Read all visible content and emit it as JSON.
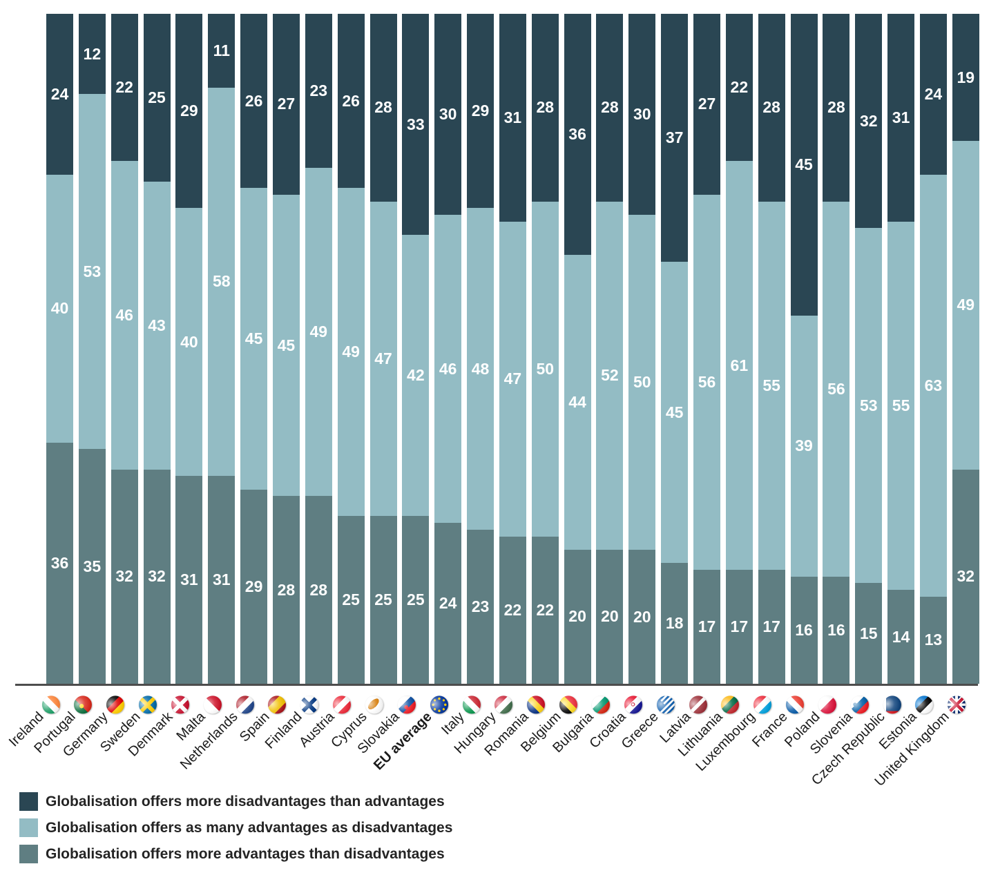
{
  "chart_data": {
    "type": "bar",
    "stacked": true,
    "unit": "percent",
    "title": "",
    "legend_position": "bottom-left",
    "background": "#ffffff",
    "axis_line_color": "#4d4d4d",
    "value_label_color": "#ffffff",
    "emphasis_category": "EU average",
    "categories": [
      "Ireland",
      "Portugal",
      "Germany",
      "Sweden",
      "Denmark",
      "Malta",
      "Netherlands",
      "Spain",
      "Finland",
      "Austria",
      "Cyprus",
      "Slovakia",
      "EU average",
      "Italy",
      "Hungary",
      "Romania",
      "Belgium",
      "Bulgaria",
      "Croatia",
      "Greece",
      "Latvia",
      "Lithuania",
      "Luxembourg",
      "France",
      "Poland",
      "Slovenia",
      "Czech Republic",
      "Estonia",
      "United Kingdom"
    ],
    "series": [
      {
        "name": "Globalisation offers more disadvantages than advantages",
        "color": "#2a4653",
        "values": [
          24,
          12,
          22,
          25,
          29,
          11,
          26,
          27,
          23,
          26,
          28,
          33,
          30,
          29,
          31,
          28,
          36,
          28,
          30,
          37,
          27,
          22,
          28,
          45,
          28,
          32,
          31,
          24,
          19
        ]
      },
      {
        "name": "Globalisation offers as many advantages as disadvantages",
        "color": "#93bcc4",
        "values": [
          40,
          53,
          46,
          43,
          40,
          58,
          45,
          45,
          49,
          49,
          47,
          42,
          46,
          48,
          47,
          50,
          44,
          52,
          50,
          45,
          56,
          61,
          55,
          39,
          56,
          53,
          55,
          63,
          49
        ]
      },
      {
        "name": "Globalisation offers more advantages than disadvantages",
        "color": "#5f7e82",
        "values": [
          36,
          35,
          32,
          32,
          31,
          31,
          29,
          28,
          28,
          25,
          25,
          25,
          24,
          23,
          22,
          22,
          20,
          20,
          20,
          18,
          17,
          17,
          17,
          16,
          16,
          15,
          14,
          13,
          32
        ]
      }
    ],
    "flags": [
      {
        "type": "v",
        "colors": [
          "#169b62",
          "#ffffff",
          "#ff883e"
        ]
      },
      {
        "type": "portugal",
        "colors": [
          "#046a38",
          "#da291c"
        ]
      },
      {
        "type": "h",
        "colors": [
          "#000000",
          "#dd0000",
          "#ffce00"
        ]
      },
      {
        "type": "cross",
        "colors": [
          "#006aa7",
          "#fecc02"
        ]
      },
      {
        "type": "cross",
        "colors": [
          "#c8102e",
          "#ffffff"
        ]
      },
      {
        "type": "v",
        "colors": [
          "#ffffff",
          "#cf142b"
        ],
        "widths": [
          50,
          50
        ]
      },
      {
        "type": "h",
        "colors": [
          "#ae1c28",
          "#ffffff",
          "#21468b"
        ]
      },
      {
        "type": "h",
        "colors": [
          "#aa151b",
          "#f1bf00",
          "#aa151b"
        ],
        "widths": [
          25,
          50,
          25
        ]
      },
      {
        "type": "cross",
        "colors": [
          "#ffffff",
          "#003580"
        ]
      },
      {
        "type": "h",
        "colors": [
          "#ed2939",
          "#ffffff",
          "#ed2939"
        ]
      },
      {
        "type": "cyprus",
        "colors": [
          "#ffffff",
          "#d57800"
        ]
      },
      {
        "type": "slovakia",
        "colors": [
          "#ffffff",
          "#0b4ea2",
          "#ee1c25"
        ]
      },
      {
        "type": "eu",
        "colors": [
          "#003399",
          "#ffcc00"
        ]
      },
      {
        "type": "v",
        "colors": [
          "#009246",
          "#ffffff",
          "#ce2b37"
        ]
      },
      {
        "type": "h",
        "colors": [
          "#cd2a3e",
          "#ffffff",
          "#436f4d"
        ]
      },
      {
        "type": "v",
        "colors": [
          "#002b7f",
          "#fcd116",
          "#ce1126"
        ]
      },
      {
        "type": "v",
        "colors": [
          "#000000",
          "#fdda24",
          "#ef3340"
        ]
      },
      {
        "type": "h",
        "colors": [
          "#ffffff",
          "#00966e",
          "#d62612"
        ]
      },
      {
        "type": "croatia",
        "colors": [
          "#e8112d",
          "#ffffff",
          "#171796"
        ]
      },
      {
        "type": "greece",
        "colors": [
          "#0d5eaf",
          "#ffffff"
        ]
      },
      {
        "type": "h",
        "colors": [
          "#9e3039",
          "#ffffff",
          "#9e3039"
        ],
        "widths": [
          40,
          20,
          40
        ]
      },
      {
        "type": "h",
        "colors": [
          "#fdb913",
          "#006a44",
          "#c1272d"
        ]
      },
      {
        "type": "h",
        "colors": [
          "#ed2939",
          "#ffffff",
          "#00a1de"
        ]
      },
      {
        "type": "v",
        "colors": [
          "#0055a4",
          "#ffffff",
          "#ef4135"
        ]
      },
      {
        "type": "h",
        "colors": [
          "#ffffff",
          "#dc143c"
        ],
        "widths": [
          45,
          55
        ]
      },
      {
        "type": "slovenia",
        "colors": [
          "#ffffff",
          "#005da4",
          "#ed1c24"
        ]
      },
      {
        "type": "czech",
        "colors": [
          "#ffffff",
          "#d7141a",
          "#11457e"
        ]
      },
      {
        "type": "h",
        "colors": [
          "#0072ce",
          "#000000",
          "#ffffff"
        ]
      },
      {
        "type": "uk",
        "colors": [
          "#012169",
          "#ffffff",
          "#c8102e"
        ]
      }
    ]
  }
}
